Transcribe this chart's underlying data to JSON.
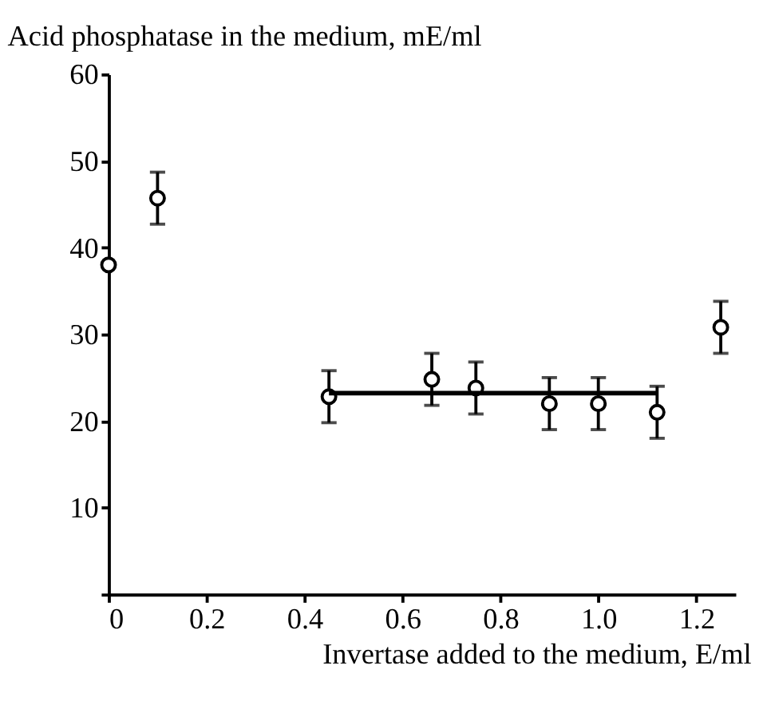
{
  "chart_data": {
    "type": "scatter",
    "title": "Acid phosphatase in the medium, mE/ml",
    "xlabel": "Invertase added to the medium, E/ml",
    "xlim": [
      0,
      1.28
    ],
    "xticks": [
      0,
      0.2,
      0.4,
      0.6,
      0.8,
      {
        "value": 1.0,
        "label": "1.0"
      },
      1.2
    ],
    "ylim": [
      0,
      60
    ],
    "yticks": [
      {
        "value": 0,
        "label": null
      },
      10,
      20,
      30,
      40,
      50,
      60
    ],
    "grid": false,
    "series": [
      {
        "color": "#000000",
        "marker": "circle",
        "x": [
          0,
          0.1,
          0.45,
          0.66,
          0.75,
          0.9,
          1.0,
          1.12,
          1.25
        ],
        "values": [
          38,
          45.7,
          22.8,
          24.8,
          23.8,
          22,
          22,
          21,
          30.8
        ],
        "errors": [
          null,
          3,
          3,
          3,
          3,
          3,
          3,
          3,
          3
        ]
      },
      {
        "type": "line",
        "color": "#000000",
        "marker": "none",
        "x": [
          0.45,
          1.12
        ],
        "values": [
          23.2,
          23.2
        ],
        "line_style": "solid"
      }
    ]
  }
}
